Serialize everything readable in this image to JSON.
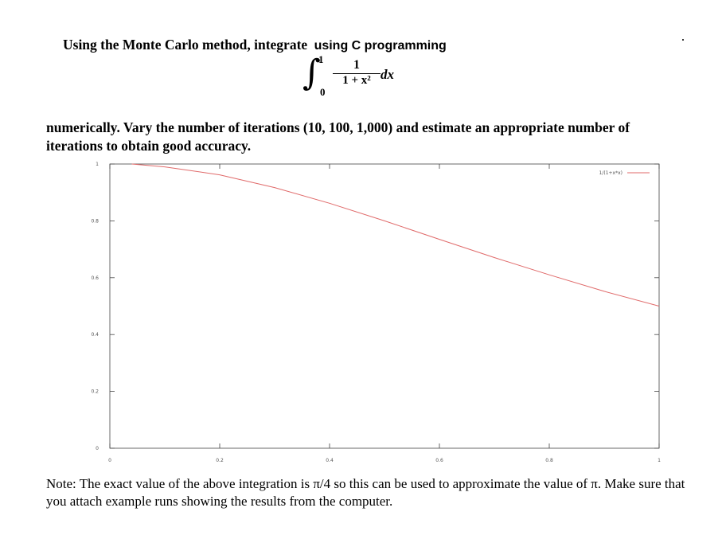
{
  "problem": {
    "title": "Using the Monte Carlo method, integrate",
    "title_suffix": "using C programming",
    "integral": {
      "upper": "1",
      "lower": "0",
      "numerator": "1",
      "denominator": "1 + x²",
      "differential": "dx"
    },
    "paragraph": "numerically. Vary the number of iterations (10, 100, 1,000) and estimate an appropriate number of iterations to obtain good accuracy."
  },
  "chart_data": {
    "type": "line",
    "series": [
      {
        "name": "1/(1+x*x)",
        "color": "#e06a6a",
        "x": [
          0.04,
          0.1,
          0.2,
          0.3,
          0.4,
          0.5,
          0.6,
          0.7,
          0.8,
          0.9,
          1.0
        ],
        "y": [
          1.0,
          0.99,
          0.962,
          0.917,
          0.862,
          0.8,
          0.735,
          0.671,
          0.61,
          0.552,
          0.5
        ]
      }
    ],
    "x_ticks": [
      "0",
      "0.2",
      "0.4",
      "0.6",
      "0.8",
      "1"
    ],
    "y_ticks": [
      "0",
      "0.2",
      "0.4",
      "0.6",
      "0.8",
      "1"
    ],
    "xlim": [
      0,
      1
    ],
    "ylim": [
      0,
      1
    ],
    "legend_position": "top-right",
    "grid": false
  },
  "note": {
    "text": "Note: The exact value of the above integration is π/4 so this can be used to approximate the value of π.  Make sure that you attach example runs showing the results from the computer."
  }
}
